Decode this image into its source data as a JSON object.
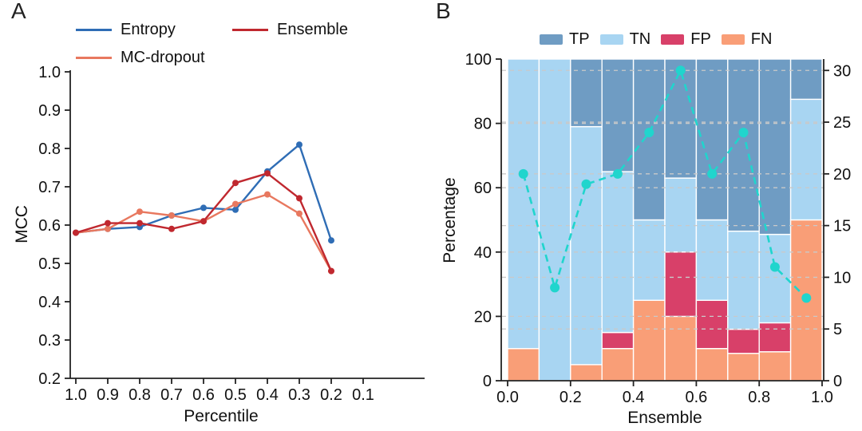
{
  "panels": {
    "a": {
      "label": "A"
    },
    "b": {
      "label": "B"
    }
  },
  "chart_data": [
    {
      "id": "mcc-vs-percentile",
      "type": "line",
      "xlabel": "Percentile",
      "ylabel": "MCC",
      "x": [
        1.0,
        0.9,
        0.8,
        0.7,
        0.6,
        0.5,
        0.4,
        0.3,
        0.2
      ],
      "x_ticks": [
        "1.0",
        "0.9",
        "0.8",
        "0.7",
        "0.6",
        "0.5",
        "0.4",
        "0.3",
        "0.2",
        "0.1"
      ],
      "y_ticks": [
        "1.0",
        "0.9",
        "0.8",
        "0.7",
        "0.6",
        "0.5",
        "0.4",
        "0.3",
        "0.2"
      ],
      "ylim": [
        0.2,
        1.0
      ],
      "x_reversed": true,
      "grid": false,
      "legend_position": "top",
      "series": [
        {
          "name": "Entropy",
          "color": "#2f6db5",
          "values": [
            0.58,
            0.59,
            0.595,
            0.625,
            0.645,
            0.64,
            0.74,
            0.81,
            0.56
          ]
        },
        {
          "name": "MC-dropout",
          "color": "#e8785f",
          "values": [
            0.58,
            0.59,
            0.635,
            0.625,
            0.61,
            0.655,
            0.68,
            0.63,
            0.48
          ]
        },
        {
          "name": "Ensemble",
          "color": "#c0282f",
          "values": [
            0.58,
            0.605,
            0.605,
            0.59,
            0.61,
            0.71,
            0.735,
            0.67,
            0.48
          ]
        }
      ]
    },
    {
      "id": "confusion-stack-vs-ensemble",
      "type": "bar",
      "stacked": true,
      "xlabel": "Ensemble",
      "ylabel_left": "Percentage",
      "bar_centers": [
        0.05,
        0.15,
        0.25,
        0.35,
        0.45,
        0.55,
        0.65,
        0.75,
        0.85,
        0.95
      ],
      "bar_width": 0.1,
      "x_ticks": [
        "0.0",
        "0.2",
        "0.4",
        "0.6",
        "0.8",
        "1.0"
      ],
      "left_ticks": [
        "0",
        "20",
        "40",
        "60",
        "80",
        "100"
      ],
      "right_ticks": [
        "0",
        "5",
        "10",
        "15",
        "20",
        "25",
        "30"
      ],
      "ylim_left": [
        0,
        100
      ],
      "right_units_per_left_100": 31.1,
      "grid": true,
      "legend_position": "top",
      "stack_order": [
        "FN",
        "FP",
        "TN",
        "TP"
      ],
      "series": [
        {
          "name": "TP",
          "color": "#6f9cc3",
          "values": [
            0,
            0,
            21,
            35,
            50,
            37,
            50,
            53.5,
            54.5,
            12.5
          ]
        },
        {
          "name": "TN",
          "color": "#a8d5f2",
          "values": [
            90,
            100,
            74,
            50,
            25,
            23,
            25,
            30.5,
            27.5,
            37.5
          ]
        },
        {
          "name": "FP",
          "color": "#d84069",
          "values": [
            0,
            0,
            0,
            5,
            0,
            20,
            15,
            7.5,
            9,
            0
          ]
        },
        {
          "name": "FN",
          "color": "#f99e77",
          "values": [
            10,
            0,
            5,
            10,
            25,
            20,
            10,
            8.5,
            9,
            50
          ]
        }
      ],
      "overlay_line": {
        "color": "#20d5cd",
        "style": "dashed",
        "axis": "right",
        "values": [
          20,
          9,
          19,
          20,
          24,
          30,
          20,
          24,
          11,
          8
        ]
      }
    }
  ]
}
